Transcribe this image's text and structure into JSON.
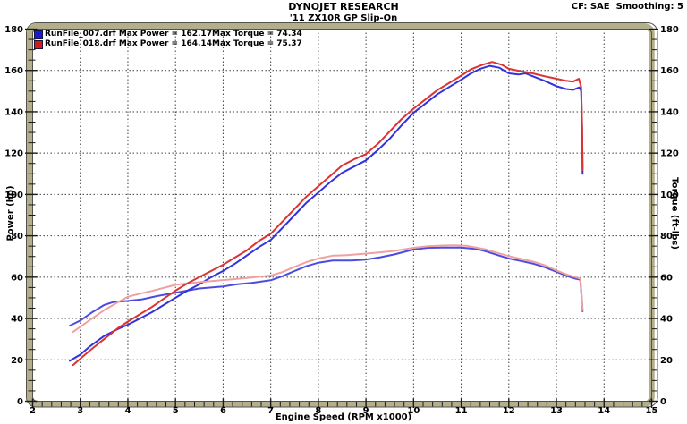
{
  "header": {
    "title": "DYNOJET RESEARCH",
    "subtitle": "'11 ZX10R GP Slip-On",
    "correction": "CF: SAE  Smoothing: 5"
  },
  "runs": [
    {
      "file": "RunFile_007.drf",
      "max_power": 162.17,
      "max_torque": 74.34,
      "power_text": "Max Power = 162.17",
      "torque_text": "Max Torque = 74.34",
      "swatch_color": "#1a1ad2"
    },
    {
      "file": "RunFile_018.drf",
      "max_power": 164.14,
      "max_torque": 75.37,
      "power_text": "Max Power = 164.14",
      "torque_text": "Max Torque = 75.37",
      "swatch_color": "#d21a1a"
    }
  ],
  "colors": {
    "frame_band": "#b3ae8c",
    "frame_line": "#54534b",
    "grid": "#3f3f3f",
    "plot_bg": "#ffffff"
  },
  "chart_data": {
    "type": "line",
    "title": "DYNOJET RESEARCH",
    "subtitle": "'11 ZX10R GP Slip-On",
    "xlabel": "Engine Speed (RPM x1000)",
    "ylabel_left": "Power (hp)",
    "ylabel_right": "Torque (ft-lbs)",
    "xlim": [
      2,
      15
    ],
    "ylim": [
      0,
      180
    ],
    "x_major": 1,
    "x_minor": 0.2,
    "y_major": 20,
    "y_minor": 5,
    "x_ticks": [
      2,
      3,
      4,
      5,
      6,
      7,
      8,
      9,
      10,
      11,
      12,
      13,
      14,
      15
    ],
    "y_ticks": [
      0,
      20,
      40,
      60,
      80,
      100,
      120,
      140,
      160,
      180
    ],
    "grid": "dotted",
    "legend_position": "top-left",
    "series": [
      {
        "name": "RunFile_007.drf Torque",
        "slug": "torque-curve-007",
        "color": "#4b4be0",
        "points": [
          [
            2.78,
            36.5
          ],
          [
            3,
            39
          ],
          [
            3.25,
            43
          ],
          [
            3.5,
            46.5
          ],
          [
            3.7,
            48
          ],
          [
            4,
            48.5
          ],
          [
            4.3,
            49.3
          ],
          [
            4.6,
            50.8
          ],
          [
            5,
            52.5
          ],
          [
            5.5,
            54.5
          ],
          [
            6,
            55.5
          ],
          [
            6.3,
            56.6
          ],
          [
            6.6,
            57.2
          ],
          [
            7,
            58.5
          ],
          [
            7.25,
            60.5
          ],
          [
            7.5,
            63
          ],
          [
            7.75,
            65.3
          ],
          [
            8,
            67
          ],
          [
            8.3,
            68
          ],
          [
            8.7,
            68
          ],
          [
            9,
            68.5
          ],
          [
            9.3,
            69.6
          ],
          [
            9.6,
            71
          ],
          [
            10,
            73.4
          ],
          [
            10.3,
            74.2
          ],
          [
            10.6,
            74.3
          ],
          [
            11,
            74.3
          ],
          [
            11.3,
            73.7
          ],
          [
            11.5,
            72.6
          ],
          [
            11.75,
            70.8
          ],
          [
            12,
            69
          ],
          [
            12.3,
            67.6
          ],
          [
            12.5,
            66.6
          ],
          [
            12.75,
            64.8
          ],
          [
            13,
            62.6
          ],
          [
            13.25,
            60.3
          ],
          [
            13.4,
            59.3
          ],
          [
            13.5,
            58.8
          ],
          [
            13.53,
            50
          ],
          [
            13.55,
            43.5
          ]
        ]
      },
      {
        "name": "RunFile_007.drf Power",
        "slug": "power-curve-007",
        "color": "#3232dc",
        "points": [
          [
            2.78,
            19.5
          ],
          [
            3,
            22.5
          ],
          [
            3.2,
            26.5
          ],
          [
            3.5,
            31.5
          ],
          [
            3.8,
            35
          ],
          [
            4,
            37
          ],
          [
            4.25,
            40
          ],
          [
            4.5,
            43
          ],
          [
            4.75,
            46.5
          ],
          [
            5,
            50
          ],
          [
            5.25,
            53.5
          ],
          [
            5.5,
            56.5
          ],
          [
            5.75,
            60
          ],
          [
            6,
            63
          ],
          [
            6.25,
            66.5
          ],
          [
            6.5,
            70.5
          ],
          [
            6.75,
            74.5
          ],
          [
            7,
            78
          ],
          [
            7.25,
            84
          ],
          [
            7.5,
            90
          ],
          [
            7.75,
            96
          ],
          [
            8,
            101
          ],
          [
            8.25,
            106
          ],
          [
            8.5,
            110.5
          ],
          [
            8.75,
            113.5
          ],
          [
            9,
            116.5
          ],
          [
            9.25,
            121.5
          ],
          [
            9.5,
            127
          ],
          [
            9.75,
            133.5
          ],
          [
            10,
            139.5
          ],
          [
            10.25,
            144
          ],
          [
            10.5,
            148.5
          ],
          [
            10.75,
            152
          ],
          [
            11,
            155.5
          ],
          [
            11.2,
            158.5
          ],
          [
            11.4,
            160.8
          ],
          [
            11.6,
            162.2
          ],
          [
            11.8,
            161.3
          ],
          [
            12,
            158.6
          ],
          [
            12.2,
            158
          ],
          [
            12.35,
            158.6
          ],
          [
            12.5,
            157.2
          ],
          [
            12.75,
            155
          ],
          [
            13,
            152.4
          ],
          [
            13.2,
            151
          ],
          [
            13.35,
            150.6
          ],
          [
            13.48,
            151.8
          ],
          [
            13.52,
            150
          ],
          [
            13.54,
            130
          ],
          [
            13.55,
            110
          ]
        ]
      },
      {
        "name": "RunFile_018.drf Torque",
        "slug": "torque-curve-018",
        "color": "#efa0a0",
        "points": [
          [
            2.85,
            33.5
          ],
          [
            3,
            36
          ],
          [
            3.25,
            40
          ],
          [
            3.5,
            44
          ],
          [
            3.8,
            48
          ],
          [
            4,
            50.5
          ],
          [
            4.25,
            52
          ],
          [
            4.5,
            53.3
          ],
          [
            5,
            56.3
          ],
          [
            5.5,
            57.6
          ],
          [
            6,
            58.6
          ],
          [
            6.5,
            59.6
          ],
          [
            7,
            60.8
          ],
          [
            7.25,
            62.5
          ],
          [
            7.5,
            65
          ],
          [
            7.75,
            67.3
          ],
          [
            8,
            69
          ],
          [
            8.3,
            70.4
          ],
          [
            8.6,
            70.6
          ],
          [
            9,
            71.4
          ],
          [
            9.3,
            72
          ],
          [
            9.6,
            72.7
          ],
          [
            10,
            74.2
          ],
          [
            10.3,
            75
          ],
          [
            10.6,
            75.3
          ],
          [
            10.85,
            75.4
          ],
          [
            11.1,
            75.2
          ],
          [
            11.3,
            74.4
          ],
          [
            11.5,
            73.5
          ],
          [
            11.75,
            71.8
          ],
          [
            12,
            70.2
          ],
          [
            12.3,
            68.6
          ],
          [
            12.5,
            67.6
          ],
          [
            12.75,
            65.8
          ],
          [
            13,
            63.2
          ],
          [
            13.25,
            61
          ],
          [
            13.4,
            60
          ],
          [
            13.5,
            59.3
          ],
          [
            13.53,
            51
          ],
          [
            13.55,
            44
          ]
        ]
      },
      {
        "name": "RunFile_018.drf Power",
        "slug": "power-curve-018",
        "color": "#dc3232",
        "points": [
          [
            2.85,
            17.5
          ],
          [
            3,
            20.5
          ],
          [
            3.2,
            24.5
          ],
          [
            3.5,
            30
          ],
          [
            3.8,
            35.5
          ],
          [
            4,
            38.5
          ],
          [
            4.25,
            42
          ],
          [
            4.5,
            45.5
          ],
          [
            4.75,
            49.5
          ],
          [
            5,
            53.5
          ],
          [
            5.25,
            57
          ],
          [
            5.5,
            60
          ],
          [
            5.75,
            63
          ],
          [
            6,
            66
          ],
          [
            6.25,
            69.5
          ],
          [
            6.5,
            73
          ],
          [
            6.75,
            77.5
          ],
          [
            7,
            81
          ],
          [
            7.25,
            87
          ],
          [
            7.5,
            93
          ],
          [
            7.75,
            99
          ],
          [
            8,
            104
          ],
          [
            8.25,
            109
          ],
          [
            8.5,
            114
          ],
          [
            8.75,
            117
          ],
          [
            9,
            119.5
          ],
          [
            9.25,
            124.5
          ],
          [
            9.5,
            130.5
          ],
          [
            9.75,
            136.5
          ],
          [
            10,
            141.5
          ],
          [
            10.25,
            146
          ],
          [
            10.5,
            150.5
          ],
          [
            10.75,
            154
          ],
          [
            11,
            157.5
          ],
          [
            11.2,
            160.5
          ],
          [
            11.45,
            162.8
          ],
          [
            11.65,
            164.1
          ],
          [
            11.85,
            162.8
          ],
          [
            12,
            160.8
          ],
          [
            12.25,
            159.6
          ],
          [
            12.5,
            158.6
          ],
          [
            12.75,
            157.2
          ],
          [
            13,
            156
          ],
          [
            13.2,
            155
          ],
          [
            13.35,
            154.6
          ],
          [
            13.47,
            156
          ],
          [
            13.52,
            152
          ],
          [
            13.54,
            132
          ],
          [
            13.55,
            112
          ]
        ]
      }
    ]
  }
}
